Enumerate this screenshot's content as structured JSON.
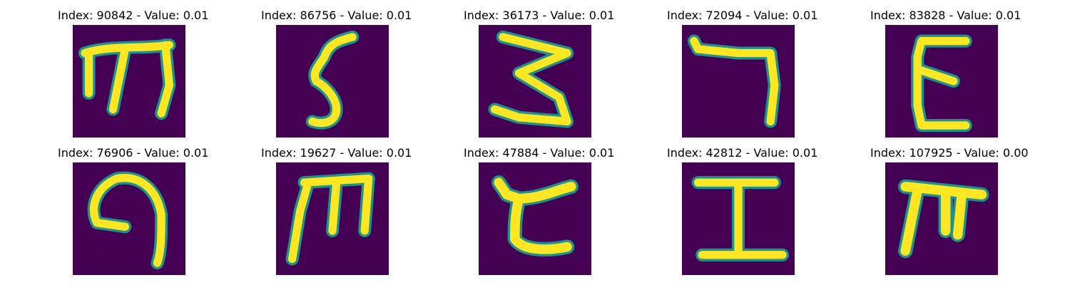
{
  "figure": {
    "panels": [
      {
        "title": "Index: 90842 - Value: 0.01",
        "image": "glyph-m-shape"
      },
      {
        "title": "Index: 86756 - Value: 0.01",
        "image": "glyph-5-shape"
      },
      {
        "title": "Index: 36173 - Value: 0.01",
        "image": "glyph-z-shape"
      },
      {
        "title": "Index: 72094 - Value: 0.01",
        "image": "glyph-7-shape"
      },
      {
        "title": "Index: 83828 - Value: 0.01",
        "image": "glyph-epsilon-shape"
      },
      {
        "title": "Index: 76906 - Value: 0.01",
        "image": "glyph-curl-shape"
      },
      {
        "title": "Index: 19627 - Value: 0.01",
        "image": "glyph-m-shape"
      },
      {
        "title": "Index: 47884 - Value: 0.01",
        "image": "glyph-c-shape"
      },
      {
        "title": "Index: 42812 - Value: 0.01",
        "image": "glyph-i-shape"
      },
      {
        "title": "Index: 107925 - Value: 0.00",
        "image": "glyph-pi-shape"
      }
    ],
    "colors": {
      "background": "#440154",
      "stroke": "#fde725",
      "edge": "#21918c"
    }
  }
}
